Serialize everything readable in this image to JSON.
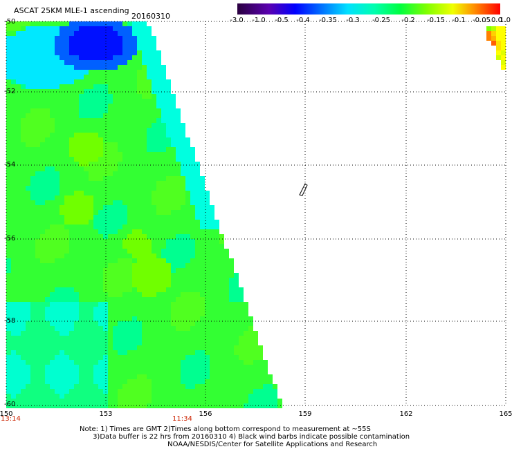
{
  "header": {
    "title": "ASCAT 25KM MLE-1 ascending",
    "date": "20160310"
  },
  "colorbar": {
    "tick_labels": [
      "-3.0",
      "-1.0",
      "-0.5",
      "-0.4",
      "-0.35",
      "-0.3",
      "-0.25",
      "-0.2",
      "-0.15",
      "-0.1",
      "-0.05",
      "0.0",
      "1.0"
    ],
    "colors": [
      "#2a0040",
      "#5a00b0",
      "#0000ff",
      "#0050ff",
      "#00a0ff",
      "#00e0ff",
      "#00ffb0",
      "#00ff40",
      "#60ff00",
      "#d0ff00",
      "#ffe000",
      "#ff8000",
      "#ff0000"
    ]
  },
  "axes": {
    "x_ticks": [
      "150",
      "153",
      "156",
      "159",
      "162",
      "165"
    ],
    "y_ticks": [
      "-50",
      "-52",
      "-54",
      "-56",
      "-58",
      "-60"
    ],
    "lon_range": [
      150,
      165
    ],
    "lat_range": [
      -50,
      -60
    ],
    "grid": "dotted"
  },
  "time_labels": [
    "13:14",
    "11:34"
  ],
  "notes": [
    "Note: 1) Times are GMT 2)Times along bottom correspond to measurement at ~55S",
    "      3)Data buffer is 22 hrs from 20160310 4) Black wind barbs indicate possible contamination",
    "                                        NOAA/NESDIS/Center for Satellite Applications and Research"
  ],
  "colors": {
    "swath_green": "#33ff33",
    "swath_cyan": "#00ffff",
    "swath_blue": "#0000ff",
    "time_label": "#cc2200"
  }
}
